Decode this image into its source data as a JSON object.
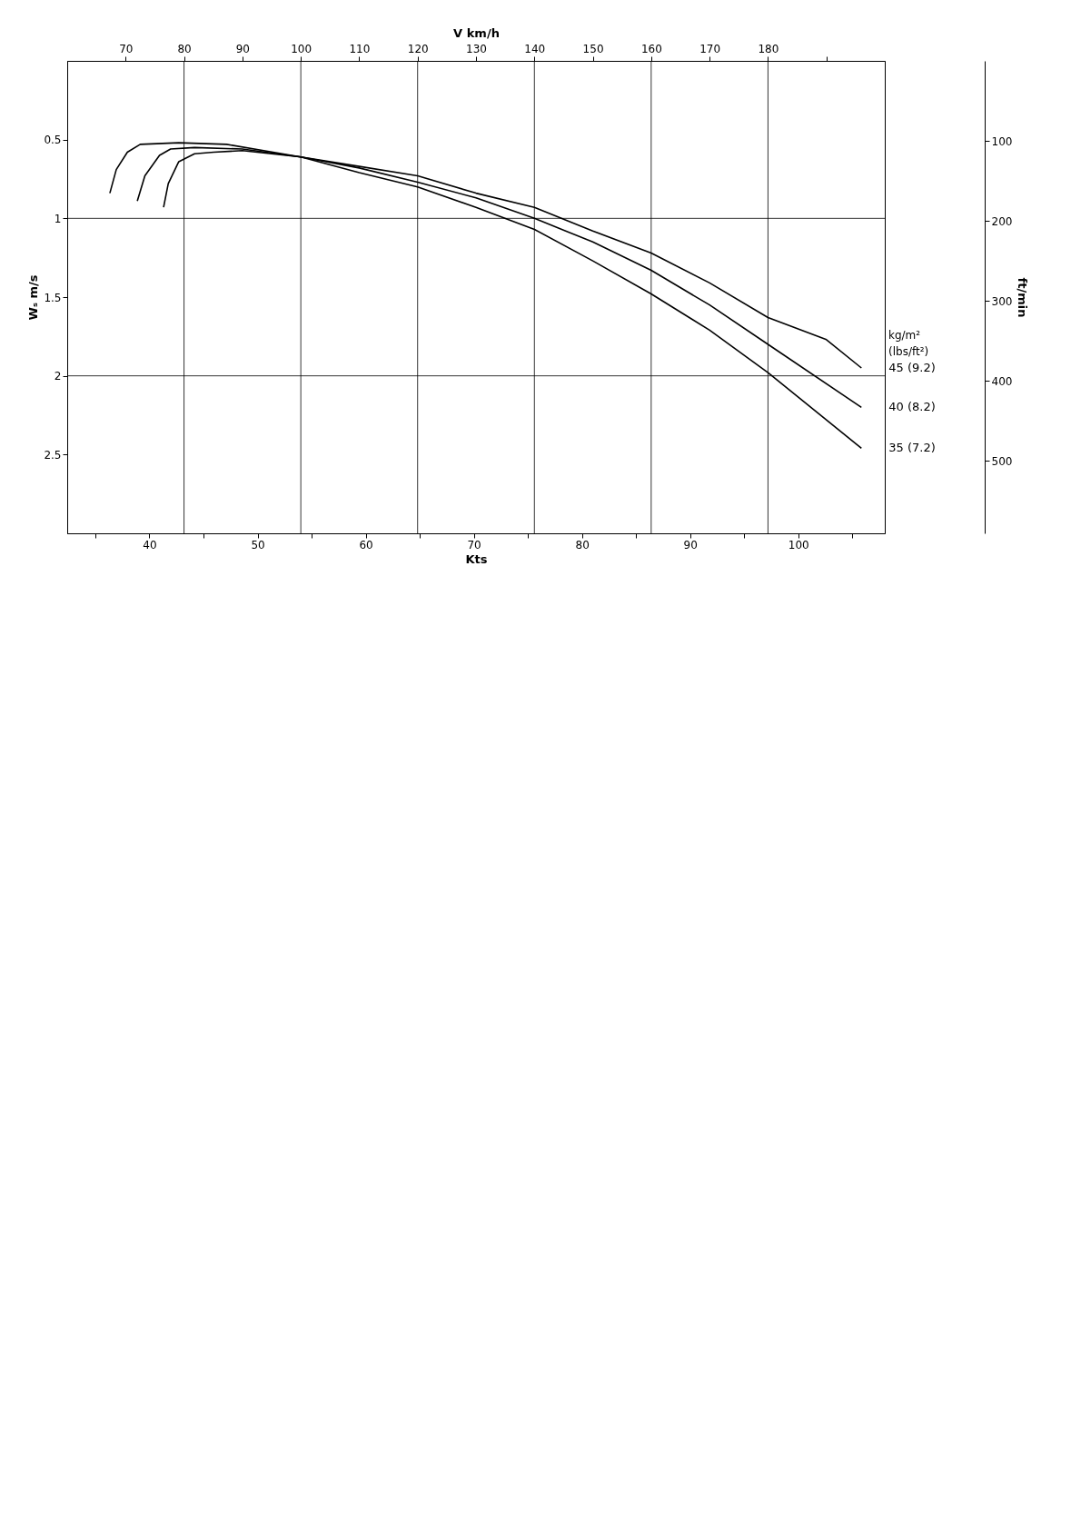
{
  "chart_data": {
    "type": "line",
    "xlabel": "V km/h",
    "ylabel": "Wₛ m/s",
    "y2label": "ft/min",
    "x2label": "Kts",
    "xlim": [
      60,
      200
    ],
    "xticks": [
      70,
      80,
      90,
      100,
      110,
      120,
      130,
      140,
      150,
      160,
      170,
      180,
      {
        "value": 190,
        "label": null
      }
    ],
    "ylim": [
      3,
      0
    ],
    "yticks": [
      0.5,
      1,
      1.5,
      2,
      2.5
    ],
    "y2lim": [
      590.6,
      0
    ],
    "y2ticks": [
      100,
      200,
      300,
      400,
      500
    ],
    "x2lim": [
      32.4,
      108.0
    ],
    "x2ticks": [
      {
        "value": 35,
        "label": null
      },
      40,
      {
        "value": 45,
        "label": null
      },
      50,
      {
        "value": 55,
        "label": null
      },
      60,
      {
        "value": 65,
        "label": null
      },
      70,
      {
        "value": 75,
        "label": null
      },
      80,
      {
        "value": 85,
        "label": null
      },
      90,
      {
        "value": 95,
        "label": null
      },
      100,
      {
        "value": 105,
        "label": null
      }
    ],
    "grid": false,
    "marker": "none",
    "line_style": "solid",
    "series": [
      {
        "name": "45 (9.2)",
        "color": "#000000",
        "x": [
          76.5,
          77.3,
          79.1,
          81.8,
          85.1,
          90,
          100,
          110,
          120,
          130,
          140,
          150,
          160,
          170,
          180,
          190,
          196
        ],
        "values": [
          0.93,
          0.78,
          0.64,
          0.59,
          0.58,
          0.57,
          0.61,
          0.67,
          0.73,
          0.84,
          0.93,
          1.08,
          1.22,
          1.41,
          1.63,
          1.77,
          1.95
        ]
      },
      {
        "name": "40 (8.2)",
        "color": "#000000",
        "x": [
          72,
          73.3,
          75.8,
          77.7,
          81.8,
          90,
          100,
          110,
          120,
          130,
          140,
          150,
          160,
          170,
          180,
          196
        ],
        "values": [
          0.89,
          0.73,
          0.6,
          0.56,
          0.55,
          0.56,
          0.61,
          0.68,
          0.77,
          0.87,
          1.0,
          1.15,
          1.33,
          1.55,
          1.8,
          2.2
        ]
      },
      {
        "name": "35 (7.2)",
        "color": "#000000",
        "x": [
          67.3,
          68.4,
          70.3,
          72.5,
          79.1,
          87.3,
          100,
          110,
          120,
          130,
          140,
          150,
          160,
          170,
          180,
          196
        ],
        "values": [
          0.84,
          0.69,
          0.58,
          0.53,
          0.52,
          0.53,
          0.61,
          0.71,
          0.8,
          0.93,
          1.07,
          1.27,
          1.48,
          1.71,
          1.98,
          2.46
        ]
      }
    ],
    "ref_lines": [
      {
        "axis": "x",
        "value": 80
      },
      {
        "axis": "x",
        "value": 100
      },
      {
        "axis": "x",
        "value": 120
      },
      {
        "axis": "x",
        "value": 140
      },
      {
        "axis": "x",
        "value": 160
      },
      {
        "axis": "x",
        "value": 180
      },
      {
        "axis": "y",
        "value": 1
      },
      {
        "axis": "y",
        "value": 2
      }
    ],
    "annotations": [
      "kg/m²",
      "(lbs/ft²)"
    ]
  }
}
